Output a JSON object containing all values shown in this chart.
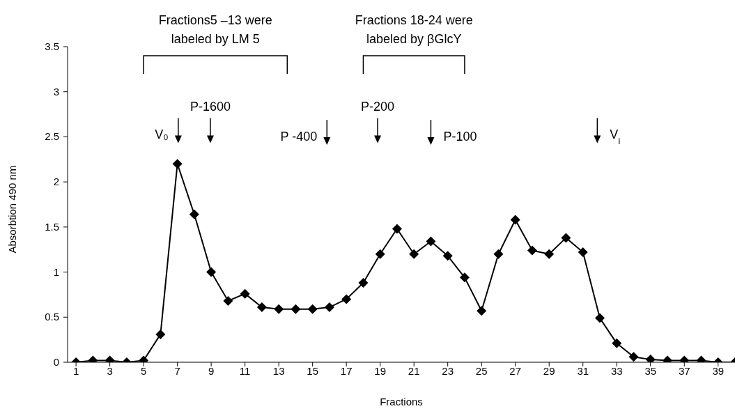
{
  "chart_data": {
    "type": "line",
    "xlabel": "Fractions",
    "ylabel": "Absorbtion 490 nm",
    "x": [
      1,
      2,
      3,
      4,
      5,
      6,
      7,
      8,
      9,
      10,
      11,
      12,
      13,
      14,
      15,
      16,
      17,
      18,
      19,
      20,
      21,
      22,
      23,
      24,
      25,
      26,
      27,
      28,
      29,
      30,
      31,
      32,
      33,
      34,
      35,
      36,
      37,
      38,
      39,
      40
    ],
    "series": [
      {
        "color": "#000000",
        "values": [
          0,
          0.02,
          0.02,
          0,
          0.02,
          0.31,
          2.2,
          1.64,
          1.0,
          0.68,
          0.76,
          0.61,
          0.59,
          0.59,
          0.59,
          0.61,
          0.7,
          0.88,
          1.2,
          1.48,
          1.2,
          1.34,
          1.18,
          0.94,
          0.57,
          1.2,
          1.58,
          1.24,
          1.2,
          1.38,
          1.22,
          0.49,
          0.21,
          0.06,
          0.03,
          0.02,
          0.02,
          0.02,
          0,
          0
        ]
      }
    ],
    "xlim": [
      0.5,
      40
    ],
    "xticks": [
      1,
      3,
      5,
      7,
      9,
      11,
      13,
      15,
      17,
      19,
      21,
      23,
      25,
      27,
      29,
      31,
      33,
      35,
      37,
      39
    ],
    "ylim": [
      0,
      3.5
    ],
    "yticks": [
      0,
      0.5,
      1,
      1.5,
      2,
      2.5,
      3,
      3.5
    ],
    "grid": false,
    "legend": false,
    "marker": "diamond",
    "line_style": "solid",
    "annotations": [
      "Fractions5 –13 were labeled by LM 5",
      "Fractions 18-24 were labeled by βGlcY",
      "V₀",
      "P-1600",
      "P -400",
      "P-200",
      "P-100",
      "V$_{i}$"
    ]
  }
}
